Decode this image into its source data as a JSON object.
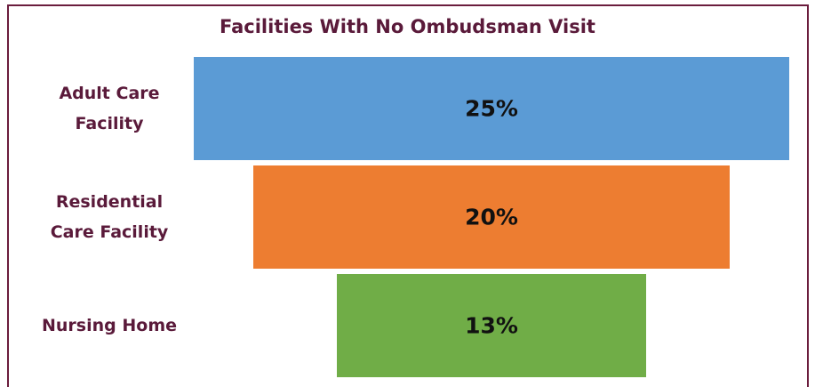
{
  "chart_data": {
    "type": "funnel",
    "title": "Facilities With No Ombudsman Visit",
    "categories": [
      "Adult Care Facility",
      "Residential Care Facility",
      "Nursing Home"
    ],
    "values": [
      25,
      20,
      13
    ],
    "value_labels": [
      "25%",
      "20%",
      "13%"
    ],
    "colors": [
      "#5b9bd5",
      "#ed7d31",
      "#70ad47"
    ]
  }
}
